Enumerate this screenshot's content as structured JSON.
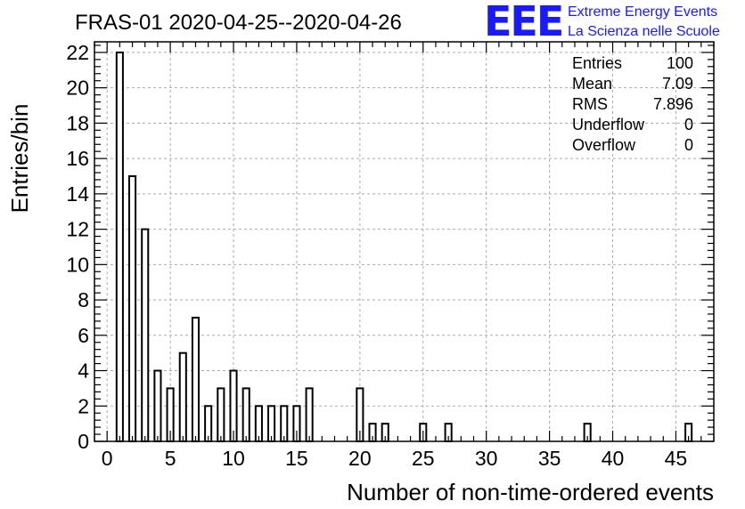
{
  "title": "FRAS-01 2020-04-25--2020-04-26",
  "logo": {
    "mark": "EEE",
    "line1": "Extreme Energy Events",
    "line2": "La Scienza nelle Scuole",
    "color": "#1a1aff"
  },
  "stats": [
    {
      "label": "Entries",
      "value": "100"
    },
    {
      "label": "Mean",
      "value": "7.09"
    },
    {
      "label": "RMS",
      "value": "7.896"
    },
    {
      "label": "Underflow",
      "value": "0"
    },
    {
      "label": "Overflow",
      "value": "0"
    }
  ],
  "chart_data": {
    "type": "bar",
    "xlabel": "Number of non-time-ordered events",
    "ylabel": "Entries/bin",
    "xlim": [
      -1,
      48
    ],
    "ylim": [
      0,
      22.6
    ],
    "grid": true,
    "bin_width": 0.5,
    "x_ticks": [
      0,
      5,
      10,
      15,
      20,
      25,
      30,
      35,
      40,
      45
    ],
    "y_ticks": [
      0,
      2,
      4,
      6,
      8,
      10,
      12,
      14,
      16,
      18,
      20,
      22
    ],
    "bins": [
      {
        "x": 1,
        "count": 22
      },
      {
        "x": 2,
        "count": 15
      },
      {
        "x": 3,
        "count": 12
      },
      {
        "x": 4,
        "count": 4
      },
      {
        "x": 5,
        "count": 3
      },
      {
        "x": 6,
        "count": 5
      },
      {
        "x": 7,
        "count": 7
      },
      {
        "x": 8,
        "count": 2
      },
      {
        "x": 9,
        "count": 3
      },
      {
        "x": 10,
        "count": 4
      },
      {
        "x": 11,
        "count": 3
      },
      {
        "x": 12,
        "count": 2
      },
      {
        "x": 13,
        "count": 2
      },
      {
        "x": 14,
        "count": 2
      },
      {
        "x": 15,
        "count": 2
      },
      {
        "x": 16,
        "count": 3
      },
      {
        "x": 20,
        "count": 3
      },
      {
        "x": 21,
        "count": 1
      },
      {
        "x": 22,
        "count": 1
      },
      {
        "x": 25,
        "count": 1
      },
      {
        "x": 27,
        "count": 1
      },
      {
        "x": 38,
        "count": 1
      },
      {
        "x": 46,
        "count": 1
      }
    ]
  }
}
